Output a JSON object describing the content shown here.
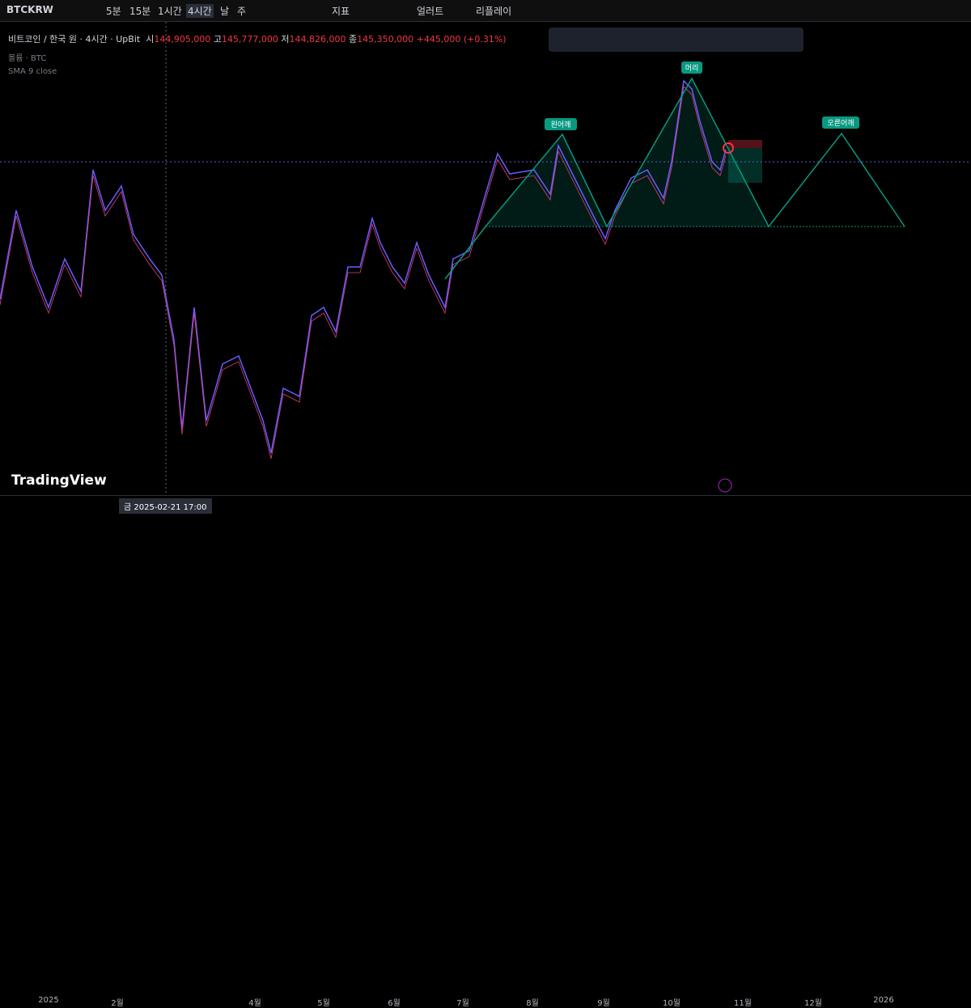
{
  "toolbar": {
    "symbol": "BTCKRW",
    "intervals": [
      "5분",
      "15분",
      "1시간",
      "4시간",
      "날",
      "주"
    ],
    "indicators": "지표",
    "alert": "얼러트",
    "replay": "리플레이"
  },
  "legend": {
    "title": "비트코인 / 한국 원 · 4시간 · UpBit",
    "ohlc": [
      {
        "label": "시",
        "value": "144,905,000"
      },
      {
        "label": "고",
        "value": "145,777,000"
      },
      {
        "label": "저",
        "value": "144,826,000"
      },
      {
        "label": "종",
        "value": "145,350,000"
      }
    ],
    "change": "+445,000 (+0.31%)",
    "volume": "볼륨 · BTC",
    "sma": "SMA 9 close"
  },
  "annotations": {
    "left_shoulder": "왼어깨",
    "head": "머리",
    "right_shoulder": "오른어깨"
  },
  "x_axis": {
    "labels": [
      "2025",
      "2월",
      "4월",
      "5월",
      "6월",
      "7월",
      "8월",
      "9월",
      "10월",
      "11월",
      "12월",
      "2026"
    ]
  },
  "crosshair_label": "금 2025-02-21  17:00",
  "logo": "TradingView"
}
